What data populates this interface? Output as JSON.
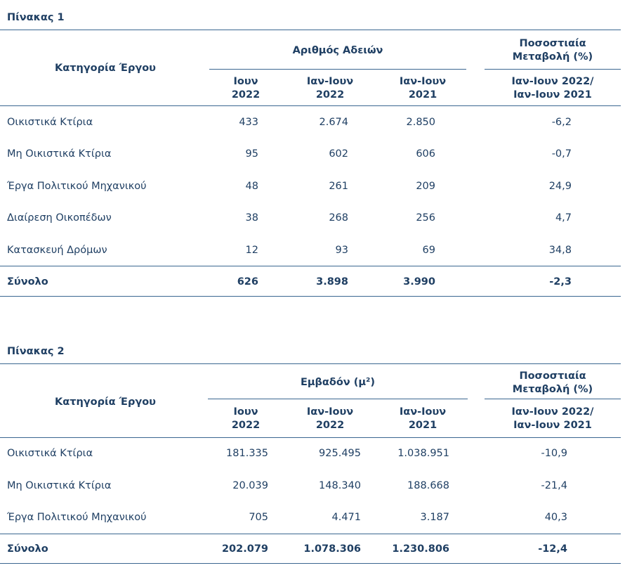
{
  "tables": [
    {
      "title": "Πίνακας 1",
      "col_category": "Κατηγορία Έργου",
      "group_header": "Αριθμός Αδειών",
      "change_header_1": "Ποσοστιαία",
      "change_header_2": "Μεταβολή (%)",
      "sub1_line1": "Ιουν",
      "sub1_line2": "2022",
      "sub2_line1": "Ιαν-Ιουν",
      "sub2_line2": "2022",
      "sub3_line1": "Ιαν-Ιουν",
      "sub3_line2": "2021",
      "sub4_line1": "Ιαν-Ιουν 2022/",
      "sub4_line2": "Ιαν-Ιουν 2021",
      "rows": [
        {
          "label": "Οικιστικά Κτίρια",
          "c1": "433",
          "c2": "2.674",
          "c3": "2.850",
          "c4": "-6,2"
        },
        {
          "label": "Μη Οικιστικά Κτίρια",
          "c1": "95",
          "c2": "602",
          "c3": "606",
          "c4": "-0,7"
        },
        {
          "label": "Έργα Πολιτικού Μηχανικού",
          "c1": "48",
          "c2": "261",
          "c3": "209",
          "c4": "24,9"
        },
        {
          "label": "Διαίρεση Οικοπέδων",
          "c1": "38",
          "c2": "268",
          "c3": "256",
          "c4": "4,7"
        },
        {
          "label": "Κατασκευή Δρόμων",
          "c1": "12",
          "c2": "93",
          "c3": "69",
          "c4": "34,8"
        }
      ],
      "total": {
        "label": "Σύνολο",
        "c1": "626",
        "c2": "3.898",
        "c3": "3.990",
        "c4": "-2,3"
      }
    },
    {
      "title": "Πίνακας 2",
      "col_category": "Κατηγορία Έργου",
      "group_header": "Εμβαδόν (μ²)",
      "change_header_1": "Ποσοστιαία",
      "change_header_2": "Μεταβολή (%)",
      "sub1_line1": "Ιουν",
      "sub1_line2": "2022",
      "sub2_line1": "Ιαν-Ιουν",
      "sub2_line2": "2022",
      "sub3_line1": "Ιαν-Ιουν",
      "sub3_line2": "2021",
      "sub4_line1": "Ιαν-Ιουν 2022/",
      "sub4_line2": "Ιαν-Ιουν 2021",
      "rows": [
        {
          "label": "Οικιστικά Κτίρια",
          "c1": "181.335",
          "c2": "925.495",
          "c3": "1.038.951",
          "c4": "-10,9"
        },
        {
          "label": "Μη Οικιστικά Κτίρια",
          "c1": "20.039",
          "c2": "148.340",
          "c3": "188.668",
          "c4": "-21,4"
        },
        {
          "label": "Έργα Πολιτικού Μηχανικού",
          "c1": "705",
          "c2": "4.471",
          "c3": "3.187",
          "c4": "40,3"
        }
      ],
      "total": {
        "label": "Σύνολο",
        "c1": "202.079",
        "c2": "1.078.306",
        "c3": "1.230.806",
        "c4": "-12,4"
      }
    }
  ]
}
